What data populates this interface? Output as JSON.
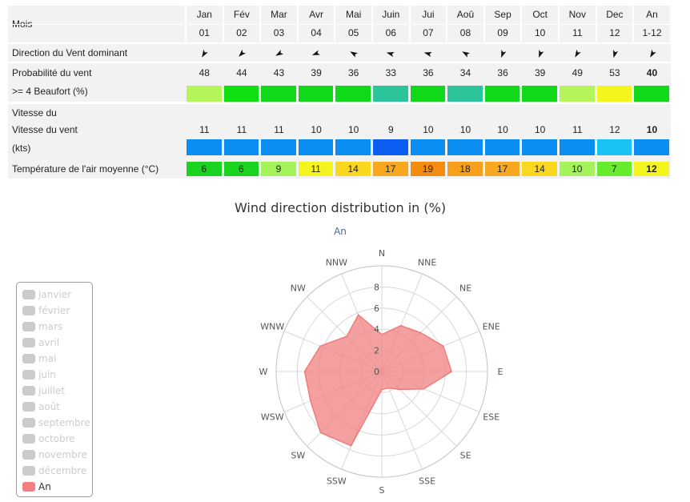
{
  "table": {
    "row_labels": {
      "mois": "Mois",
      "direction": "Direction du Vent dominant",
      "prob_1": "Probabilité du vent",
      "prob_2": ">= 4 Beaufort (%)",
      "speed_1": "Vitesse du",
      "speed_2": "Vitesse du vent",
      "speed_3": "(kts)",
      "temp": "Température de l'air moyenne (°C)"
    },
    "months": [
      {
        "name": "Jan",
        "num": "01",
        "arrow_deg": 210,
        "prob": "48",
        "prob_color": "#b5f55c",
        "speed": "11",
        "speed_color": "#0a8ef2",
        "temp": "6",
        "temp_color": "#19d31f"
      },
      {
        "name": "Fév",
        "num": "02",
        "arrow_deg": 225,
        "prob": "44",
        "prob_color": "#11e010",
        "speed": "11",
        "speed_color": "#0a8ef2",
        "temp": "6",
        "temp_color": "#19d31f"
      },
      {
        "name": "Mar",
        "num": "03",
        "arrow_deg": 240,
        "prob": "43",
        "prob_color": "#12d81a",
        "speed": "11",
        "speed_color": "#0a8ef2",
        "temp": "9",
        "temp_color": "#a4f35a"
      },
      {
        "name": "Avr",
        "num": "04",
        "arrow_deg": 250,
        "prob": "39",
        "prob_color": "#12d81a",
        "speed": "10",
        "speed_color": "#0a8ef2",
        "temp": "11",
        "temp_color": "#f4f41e"
      },
      {
        "name": "Mai",
        "num": "05",
        "arrow_deg": 300,
        "prob": "36",
        "prob_color": "#12d81a",
        "speed": "10",
        "speed_color": "#0a8ef2",
        "temp": "14",
        "temp_color": "#fbd81e"
      },
      {
        "name": "Juin",
        "num": "06",
        "arrow_deg": 285,
        "prob": "33",
        "prob_color": "#2cc49a",
        "speed": "9",
        "speed_color": "#0a5ef2",
        "temp": "17",
        "temp_color": "#f7a81e"
      },
      {
        "name": "Jui",
        "num": "07",
        "arrow_deg": 285,
        "prob": "36",
        "prob_color": "#12d81a",
        "speed": "10",
        "speed_color": "#0a8ef2",
        "temp": "19",
        "temp_color": "#f58c10"
      },
      {
        "name": "Aoû",
        "num": "08",
        "arrow_deg": 300,
        "prob": "34",
        "prob_color": "#2cc49a",
        "speed": "10",
        "speed_color": "#0a8ef2",
        "temp": "18",
        "temp_color": "#f8a01c"
      },
      {
        "name": "Sep",
        "num": "09",
        "arrow_deg": 200,
        "prob": "36",
        "prob_color": "#12d81a",
        "speed": "10",
        "speed_color": "#0a8ef2",
        "temp": "17",
        "temp_color": "#f8a81e"
      },
      {
        "name": "Oct",
        "num": "10",
        "arrow_deg": 200,
        "prob": "39",
        "prob_color": "#12d81a",
        "speed": "10",
        "speed_color": "#0a8ef2",
        "temp": "14",
        "temp_color": "#fbd81e"
      },
      {
        "name": "Nov",
        "num": "11",
        "arrow_deg": 210,
        "prob": "49",
        "prob_color": "#b5f55c",
        "speed": "11",
        "speed_color": "#0a8ef2",
        "temp": "10",
        "temp_color": "#a4f35a"
      },
      {
        "name": "Dec",
        "num": "12",
        "arrow_deg": 195,
        "prob": "53",
        "prob_color": "#f5f51e",
        "speed": "12",
        "speed_color": "#16c3f2",
        "temp": "7",
        "temp_color": "#67eb2d"
      },
      {
        "name": "An",
        "num": "1-12",
        "arrow_deg": 210,
        "prob": "40",
        "prob_color": "#12d81a",
        "speed": "10",
        "speed_color": "#0a8ef2",
        "temp": "12",
        "temp_color": "#f4f41e"
      }
    ]
  },
  "chart_data": {
    "type": "polar-area",
    "title": "Wind direction distribution in (%)",
    "subtitle": "An",
    "directions": [
      "N",
      "NNE",
      "NE",
      "ENE",
      "E",
      "ESE",
      "SE",
      "SSE",
      "S",
      "SSW",
      "SW",
      "WSW",
      "W",
      "WNW",
      "NW",
      "NNW"
    ],
    "series": [
      {
        "name": "An",
        "color": "#f28080",
        "values": [
          3.5,
          4.7,
          5.2,
          6.3,
          6.6,
          4.3,
          2.4,
          1.7,
          1.7,
          7.6,
          8.2,
          7.3,
          7.3,
          6.3,
          4.7,
          5.8
        ]
      }
    ],
    "radial_ticks": [
      "0",
      "2",
      "4",
      "6",
      "8"
    ],
    "rmax": 10,
    "legend": [
      "janvier",
      "février",
      "mars",
      "avril",
      "mai",
      "juin",
      "juillet",
      "août",
      "septembre",
      "octobre",
      "novembre",
      "décembre",
      "An"
    ],
    "legend_active": "An"
  }
}
